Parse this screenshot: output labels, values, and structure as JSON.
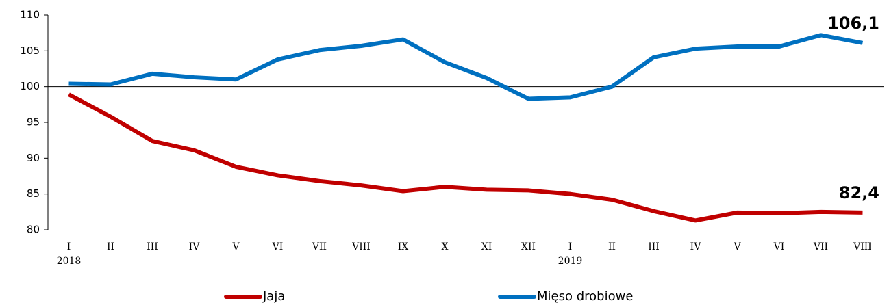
{
  "chart_data": {
    "type": "line",
    "categories": [
      "I",
      "II",
      "III",
      "IV",
      "V",
      "VI",
      "VII",
      "VIII",
      "IX",
      "X",
      "XI",
      "XII",
      "I",
      "II",
      "III",
      "IV",
      "V",
      "VI",
      "VII",
      "VIII"
    ],
    "groups": [
      {
        "label": "2018",
        "first": 0
      },
      {
        "label": "2019",
        "first": 12
      }
    ],
    "series": [
      {
        "name": "Jaja",
        "color": "#c00000",
        "end_label": "82,4",
        "values": [
          98.9,
          95.8,
          92.4,
          91.1,
          88.8,
          87.6,
          86.8,
          86.2,
          85.4,
          86.0,
          85.6,
          85.5,
          85.0,
          84.2,
          82.6,
          81.3,
          82.4,
          82.3,
          82.5,
          82.4
        ]
      },
      {
        "name": "Mięso drobiowe",
        "color": "#0070c0",
        "end_label": "106,1",
        "values": [
          100.4,
          100.3,
          101.8,
          101.3,
          101.0,
          103.8,
          105.1,
          105.7,
          106.6,
          103.4,
          101.2,
          98.3,
          98.5,
          100.0,
          104.1,
          105.3,
          105.6,
          105.6,
          107.2,
          106.1
        ]
      }
    ],
    "ylim": [
      80,
      110
    ],
    "yticks": [
      80,
      85,
      90,
      95,
      100,
      105,
      110
    ],
    "x_axis_at": 100,
    "legend": "bottom"
  }
}
